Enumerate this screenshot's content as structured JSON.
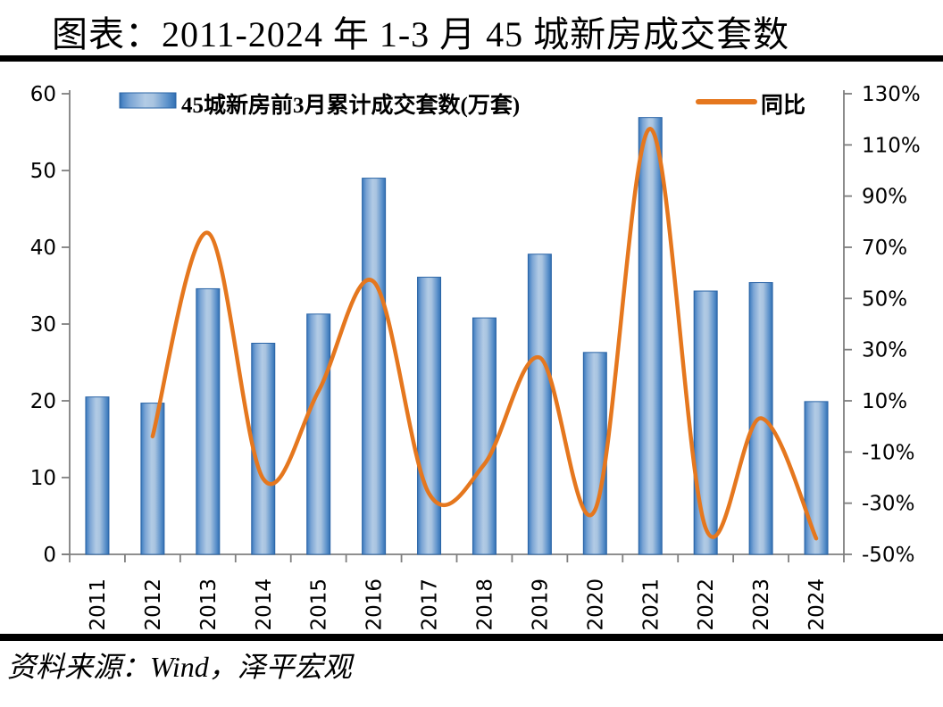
{
  "page": {
    "title": "图表：2011-2024 年 1-3 月 45 城新房成交套数",
    "source": "资料来源：Wind，泽平宏观"
  },
  "legend": {
    "bars": "45城新房前3月累计成交套数(万套)",
    "line": "同比"
  },
  "colors": {
    "bar_edge": "#2f6bad",
    "bar_mid": "#b2cbe5",
    "bar_stroke": "#2a64a6",
    "line": "#e5771e",
    "axis": "#7f7f7f",
    "text": "#000000"
  },
  "chart_data": {
    "type": "bar",
    "subtype": "bar+line combo, dual axis",
    "title": "图表：2011-2024 年 1-3 月 45 城新房成交套数",
    "categories": [
      "2011",
      "2012",
      "2013",
      "2014",
      "2015",
      "2016",
      "2017",
      "2018",
      "2019",
      "2020",
      "2021",
      "2022",
      "2023",
      "2024"
    ],
    "series": [
      {
        "name": "45城新房前3月累计成交套数(万套)",
        "type": "bar",
        "axis": "left",
        "values": [
          20.5,
          19.7,
          34.6,
          27.5,
          31.3,
          49.0,
          36.1,
          30.8,
          39.1,
          26.3,
          56.9,
          34.3,
          35.4,
          19.9
        ]
      },
      {
        "name": "同比",
        "type": "line",
        "axis": "right",
        "unit": "%",
        "smooth": true,
        "values": [
          null,
          -3.9,
          75.6,
          -20.5,
          13.8,
          56.5,
          -26.3,
          -14.7,
          26.9,
          -32.7,
          116.3,
          -39.7,
          3.2,
          -43.8
        ]
      }
    ],
    "left_axis": {
      "min": 0,
      "max": 60,
      "step": 10,
      "tick_labels": [
        "60",
        "50",
        "40",
        "30",
        "20",
        "10",
        "0"
      ]
    },
    "right_axis": {
      "min": -50,
      "max": 130,
      "step": 20,
      "tick_labels": [
        "130%",
        "110%",
        "90%",
        "70%",
        "50%",
        "30%",
        "10%",
        "-10%",
        "-30%",
        "-50%"
      ]
    },
    "grid": false,
    "legend_position": "top"
  }
}
